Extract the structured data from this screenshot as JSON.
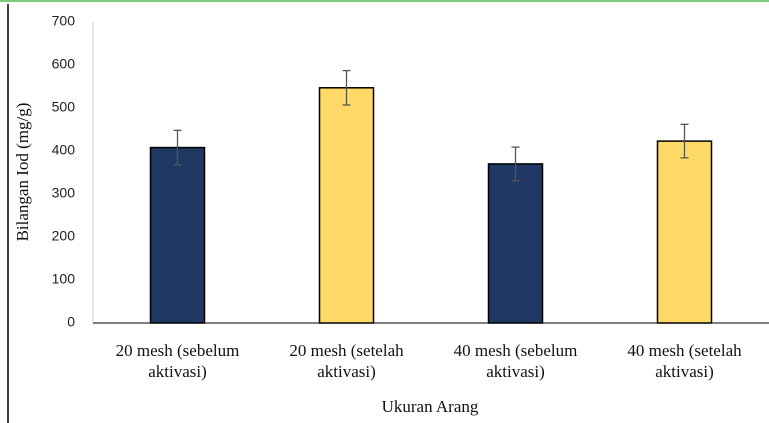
{
  "chart_data": {
    "type": "bar",
    "categories": [
      "20 mesh (sebelum aktivasi)",
      "20 mesh (setelah aktivasi)",
      "40 mesh (sebelum aktivasi)",
      "40 mesh (setelah aktivasi)"
    ],
    "values": [
      408,
      547,
      370,
      423
    ],
    "errors": [
      40,
      40,
      39,
      39
    ],
    "colors": [
      "#1f3864",
      "#ffd966",
      "#1f3864",
      "#ffd966"
    ],
    "x_label": "Ukuran Arang",
    "y_label": "Bilangan Iod (mg/g)",
    "ylim": [
      0,
      700
    ],
    "yticks": [
      0,
      100,
      200,
      300,
      400,
      500,
      600,
      700
    ],
    "grid": false
  }
}
